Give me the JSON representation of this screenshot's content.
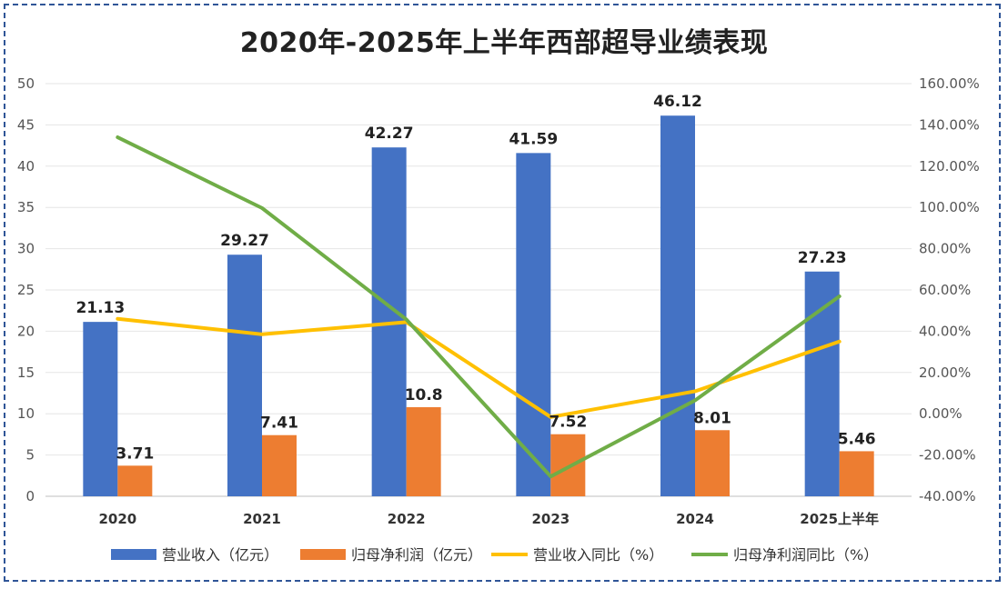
{
  "chart_data": {
    "type": "bar",
    "title": "2020年-2025年上半年西部超导业绩表现",
    "categories": [
      "2020",
      "2021",
      "2022",
      "2023",
      "2024",
      "2025上半年"
    ],
    "ylim": [
      0,
      50
    ],
    "yticks": [
      0,
      5,
      10,
      15,
      20,
      25,
      30,
      35,
      40,
      45,
      50
    ],
    "y2lim": [
      -40,
      160
    ],
    "y2ticks": [
      "-40.00%",
      "-20.00%",
      "0.00%",
      "20.00%",
      "40.00%",
      "60.00%",
      "80.00%",
      "100.00%",
      "120.00%",
      "140.00%",
      "160.00%"
    ],
    "y2tick_values": [
      -40,
      -20,
      0,
      20,
      40,
      60,
      80,
      100,
      120,
      140,
      160
    ],
    "legend_position": "bottom",
    "grid": true,
    "series": [
      {
        "name": "营业收入（亿元）",
        "kind": "bar",
        "axis": "left",
        "color": "#4472c4",
        "values": [
          21.13,
          29.27,
          42.27,
          41.59,
          46.12,
          27.23
        ],
        "labels": [
          "21.13",
          "29.27",
          "42.27",
          "41.59",
          "46.12",
          "27.23"
        ]
      },
      {
        "name": "归母净利润（亿元）",
        "kind": "bar",
        "axis": "left",
        "color": "#ed7d31",
        "values": [
          3.71,
          7.41,
          10.8,
          7.52,
          8.01,
          5.46
        ],
        "labels": [
          "3.71",
          "7.41",
          "10.8",
          "7.52",
          "8.01",
          "5.46"
        ]
      },
      {
        "name": "营业收入同比（%）",
        "kind": "line",
        "axis": "right",
        "color": "#ffc000",
        "values": [
          46,
          38.5,
          44.4,
          -1.6,
          10.9,
          35
        ]
      },
      {
        "name": "归母净利润同比（%）",
        "kind": "line",
        "axis": "right",
        "color": "#70ad47",
        "values": [
          134,
          99.7,
          45.7,
          -30.4,
          6.5,
          56.9
        ]
      }
    ]
  }
}
